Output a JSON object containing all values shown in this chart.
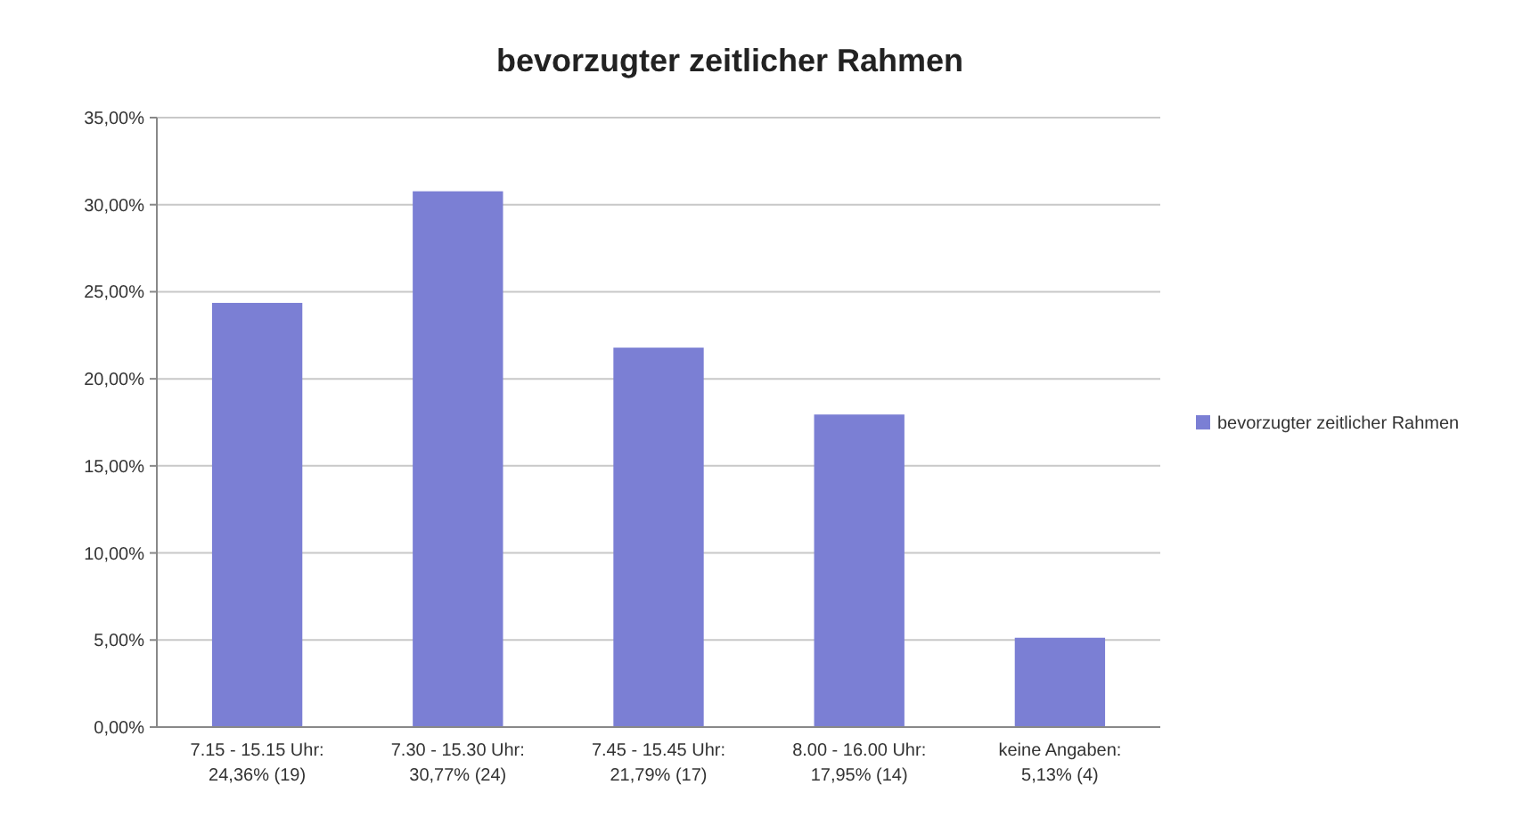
{
  "chart_data": {
    "type": "bar",
    "title": "bevorzugter zeitlicher Rahmen",
    "categories": [
      "7.15 - 15.15 Uhr:\n24,36% (19)",
      "7.30 - 15.30 Uhr:\n30,77% (24)",
      "7.45 - 15.45 Uhr:\n21,79% (17)",
      "8.00 - 16.00 Uhr:\n17,95% (14)",
      "keine Angaben:\n5,13% (4)"
    ],
    "series": [
      {
        "name": "bevorzugter zeitlicher Rahmen",
        "color": "#7b7fd4",
        "values": [
          24.36,
          30.77,
          21.79,
          17.95,
          5.13
        ]
      }
    ],
    "ylim": [
      0,
      35
    ],
    "yticks": [
      {
        "value": 0,
        "label": "0,00%"
      },
      {
        "value": 5,
        "label": "5,00%"
      },
      {
        "value": 10,
        "label": "10,00%"
      },
      {
        "value": 15,
        "label": "15,00%"
      },
      {
        "value": 20,
        "label": "20,00%"
      },
      {
        "value": 25,
        "label": "25,00%"
      },
      {
        "value": 30,
        "label": "30,00%"
      },
      {
        "value": 35,
        "label": "35,00%"
      }
    ],
    "grid": "y",
    "legend": "right"
  }
}
